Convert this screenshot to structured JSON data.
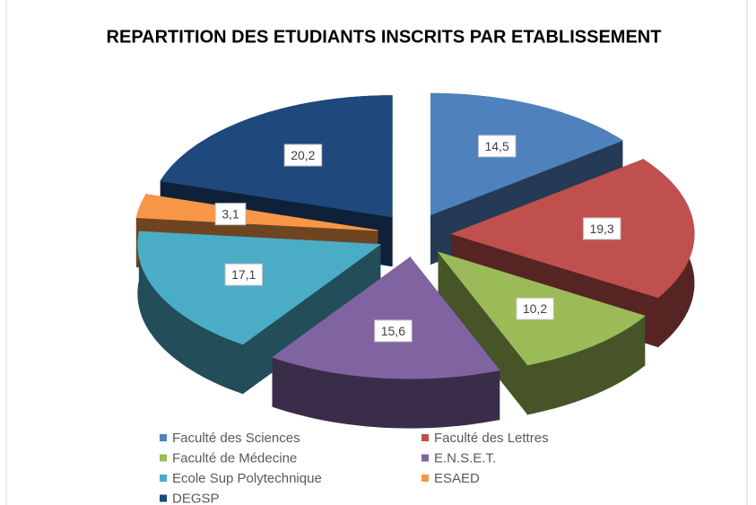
{
  "chart_data": {
    "type": "pie",
    "title": "REPARTITION DES ETUDIANTS INSCRITS PAR ETABLISSEMENT",
    "categories": [
      "Faculté des Sciences",
      "Faculté des Lettres",
      "Faculté de Médecine",
      "E.N.S.E.T.",
      "Ecole Sup Polytechnique",
      "ESAED",
      "DEGSP"
    ],
    "values": [
      14.5,
      19.3,
      10.2,
      15.6,
      17.1,
      3.1,
      20.2
    ],
    "value_labels": [
      "14,5",
      "19,3",
      "10,2",
      "15,6",
      "17,1",
      "3,1",
      "20,2"
    ],
    "colors": [
      "#4f81bd",
      "#c0504d",
      "#9bbb59",
      "#8064a2",
      "#4bacc6",
      "#f79646",
      "#1f497d"
    ],
    "legend": "bottom"
  }
}
